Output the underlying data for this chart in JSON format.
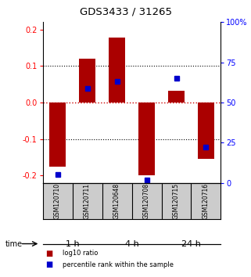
{
  "title": "GDS3433 / 31265",
  "samples": [
    "GSM120710",
    "GSM120711",
    "GSM120648",
    "GSM120708",
    "GSM120715",
    "GSM120716"
  ],
  "log10_ratio": [
    -0.175,
    0.12,
    0.178,
    -0.2,
    0.033,
    -0.155
  ],
  "percentile_rank": [
    5,
    59,
    63,
    2,
    65,
    22
  ],
  "time_groups": [
    {
      "label": "1 h",
      "samples": [
        0,
        1
      ],
      "color": "#c8f0c8"
    },
    {
      "label": "4 h",
      "samples": [
        2,
        3
      ],
      "color": "#90e090"
    },
    {
      "label": "24 h",
      "samples": [
        4,
        5
      ],
      "color": "#44cc44"
    }
  ],
  "ylim": [
    -0.22,
    0.22
  ],
  "yticks_left": [
    -0.2,
    -0.1,
    0.0,
    0.1,
    0.2
  ],
  "yticks_right": [
    0,
    25,
    50,
    75,
    100
  ],
  "bar_color": "#aa0000",
  "dot_color": "#0000cc",
  "background_color": "#ffffff",
  "grid_color": "#000000",
  "zero_line_color": "#cc0000",
  "bar_width": 0.55,
  "sample_box_color": "#cccccc",
  "legend_red_label": "log10 ratio",
  "legend_blue_label": "percentile rank within the sample"
}
